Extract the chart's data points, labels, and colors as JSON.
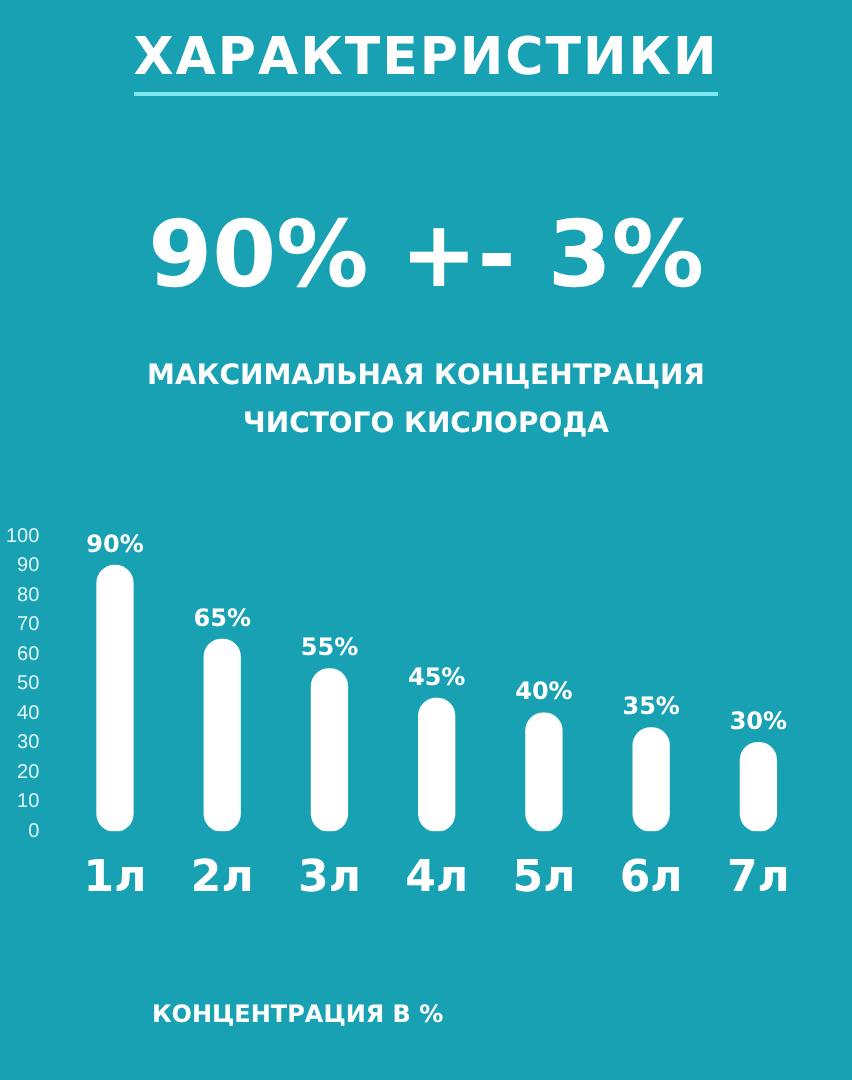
{
  "chart_data": {
    "type": "bar",
    "title": "ХАРАКТЕРИСТИКИ",
    "subtitle": "90% +- 3%",
    "annotations": [
      "МАКСИМАЛЬНАЯ КОНЦЕНТРАЦИЯ ЧИСТОГО КИСЛОРОДА"
    ],
    "xlabel": "КОНЦЕНТРАЦИЯ В %",
    "categories": [
      "1л",
      "2л",
      "3л",
      "4л",
      "5л",
      "6л",
      "7л"
    ],
    "values": [
      90,
      65,
      55,
      45,
      40,
      35,
      30
    ],
    "value_labels": [
      "90%",
      "65%",
      "55%",
      "45%",
      "40%",
      "35%",
      "30%"
    ],
    "color": "#ffffff",
    "ylim": [
      0,
      100
    ],
    "yticks": [
      0,
      10,
      20,
      30,
      40,
      50,
      60,
      70,
      80,
      90,
      100
    ],
    "grid": false,
    "legend": false
  }
}
